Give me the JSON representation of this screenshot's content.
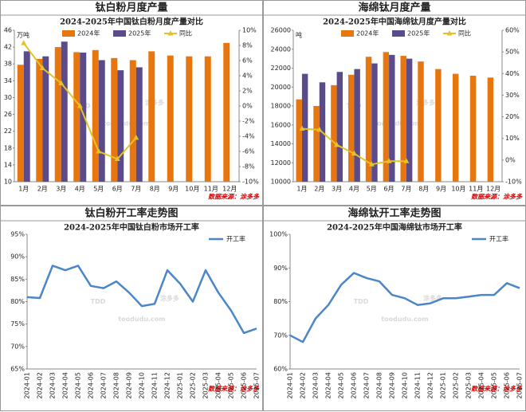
{
  "watermark": {
    "logo": "TDD",
    "name": "涂多多",
    "site": "toodudu.com"
  },
  "chart_data": [
    {
      "type": "bar",
      "panel_title": "钛白粉月度产量",
      "title": "2024-2025年中国钛白粉月度产量对比",
      "y_unit": "万吨",
      "source": "数据来源：涂多多",
      "categories": [
        "1月",
        "2月",
        "3月",
        "4月",
        "5月",
        "6月",
        "7月",
        "8月",
        "9月",
        "10月",
        "11月",
        "12月"
      ],
      "series": [
        {
          "name": "2024年",
          "color": "#e8760f",
          "values": [
            37.8,
            39.2,
            42,
            40.8,
            41.3,
            39.4,
            38.9,
            41,
            40,
            39.8,
            39.8,
            43
          ]
        },
        {
          "name": "2025年",
          "color": "#5b4b8a",
          "values": [
            41,
            39.8,
            43.3,
            40.7,
            38.9,
            36.5,
            37.2,
            null,
            null,
            null,
            null,
            null
          ]
        },
        {
          "name": "同比",
          "color": "#e6c229",
          "type": "line",
          "axis": "y2",
          "values": [
            8.3,
            5,
            3,
            0,
            -6,
            -7,
            -4.2,
            null,
            null,
            null,
            null,
            null
          ]
        }
      ],
      "ylim": [
        10,
        46
      ],
      "yticks": [
        10,
        14,
        18,
        22,
        26,
        30,
        34,
        38,
        42,
        46
      ],
      "y2lim": [
        -10,
        10
      ],
      "y2ticks": [
        {
          "value": -10,
          "label": "-10%"
        },
        {
          "value": -8,
          "label": "-8%"
        },
        {
          "value": -6,
          "label": "-6%"
        },
        {
          "value": -4,
          "label": "-4%"
        },
        {
          "value": -2,
          "label": "-2%"
        },
        {
          "value": 0,
          "label": "0%"
        },
        {
          "value": 2,
          "label": "2%"
        },
        {
          "value": 4,
          "label": "4%"
        },
        {
          "value": 6,
          "label": "6%"
        },
        {
          "value": 8,
          "label": "8%"
        },
        {
          "value": 10,
          "label": "10%"
        }
      ]
    },
    {
      "type": "bar",
      "panel_title": "海绵钛月度产量",
      "title": "2024-2025年中国海绵钛月度产量对比",
      "y_unit": "吨",
      "source": "数据来源：涂多多",
      "categories": [
        "1月",
        "2月",
        "3月",
        "4月",
        "5月",
        "6月",
        "7月",
        "8月",
        "9月",
        "10月",
        "11月",
        "12月"
      ],
      "series": [
        {
          "name": "2024年",
          "color": "#e8760f",
          "values": [
            18700,
            18000,
            20200,
            21300,
            23200,
            23700,
            23300,
            22700,
            21900,
            21400,
            21200,
            21000
          ]
        },
        {
          "name": "2025年",
          "color": "#5b4b8a",
          "values": [
            21400,
            20500,
            21600,
            21900,
            22500,
            23400,
            23000,
            null,
            null,
            null,
            null,
            null
          ]
        },
        {
          "name": "同比",
          "color": "#e6c229",
          "type": "line",
          "axis": "y2",
          "values": [
            14.5,
            14,
            7,
            3,
            -2,
            -0.5,
            -0.5,
            null,
            null,
            null,
            null,
            null
          ]
        }
      ],
      "ylim": [
        10000,
        26000
      ],
      "yticks": [
        10000,
        12000,
        14000,
        16000,
        18000,
        20000,
        22000,
        24000,
        26000
      ],
      "y2lim": [
        -10,
        60
      ],
      "y2ticks": [
        {
          "value": -10,
          "label": "-10%"
        },
        {
          "value": 0,
          "label": "0%"
        },
        {
          "value": 10,
          "label": "10%"
        },
        {
          "value": 20,
          "label": "20%"
        },
        {
          "value": 30,
          "label": "30%"
        },
        {
          "value": 40,
          "label": "40%"
        },
        {
          "value": 50,
          "label": "50%"
        },
        {
          "value": 60,
          "label": "60%"
        }
      ]
    },
    {
      "type": "line",
      "panel_title": "钛白粉开工率走势图",
      "title": "2024-2025年中国钛白粉市场开工率",
      "source": "数据来源：涂多多",
      "categories": [
        "2024-01",
        "2024-02",
        "2024-03",
        "2024-04",
        "2024-05",
        "2024-06",
        "2024-07",
        "2024-08",
        "2024-09",
        "2024-10",
        "2024-11",
        "2024-12",
        "2025-01",
        "2025-02",
        "2025-03",
        "2025-04",
        "2025-05",
        "2025-06",
        "2025-07"
      ],
      "series": [
        {
          "name": "开工率",
          "color": "#4a86c8",
          "values": [
            81,
            80.8,
            88,
            87,
            88,
            83.5,
            83,
            84.5,
            82,
            79,
            79.5,
            87,
            84,
            80,
            87,
            82,
            78,
            73,
            74
          ]
        }
      ],
      "ylim": [
        65,
        95
      ],
      "yticks": [
        {
          "value": 65,
          "label": "65%"
        },
        {
          "value": 70,
          "label": "70%"
        },
        {
          "value": 75,
          "label": "75%"
        },
        {
          "value": 80,
          "label": "80%"
        },
        {
          "value": 85,
          "label": "85%"
        },
        {
          "value": 90,
          "label": "90%"
        },
        {
          "value": 95,
          "label": "95%"
        }
      ]
    },
    {
      "type": "line",
      "panel_title": "海绵钛开工率走势图",
      "title": "2024-2025年中国海绵钛市场开工率",
      "source": "数据来源：涂多多",
      "categories": [
        "2024-01",
        "2024-02",
        "2024-03",
        "2024-04",
        "2024-05",
        "2024-06",
        "2024-07",
        "2024-08",
        "2024-09",
        "2024-10",
        "2024-11",
        "2024-12",
        "2025-01",
        "2025-02",
        "2025-03",
        "2025-04",
        "2025-05",
        "2025-06",
        "2025-07"
      ],
      "series": [
        {
          "name": "开工率",
          "color": "#4a86c8",
          "values": [
            70,
            68,
            75,
            79,
            85,
            88.5,
            87,
            86,
            82,
            81,
            79,
            79.5,
            81,
            81,
            81.5,
            82,
            82,
            85.5,
            84
          ]
        }
      ],
      "ylim": [
        60,
        100
      ],
      "yticks": [
        {
          "value": 60,
          "label": "60%"
        },
        {
          "value": 70,
          "label": "70%"
        },
        {
          "value": 80,
          "label": "80%"
        },
        {
          "value": 90,
          "label": "90%"
        },
        {
          "value": 100,
          "label": "100%"
        }
      ]
    }
  ]
}
